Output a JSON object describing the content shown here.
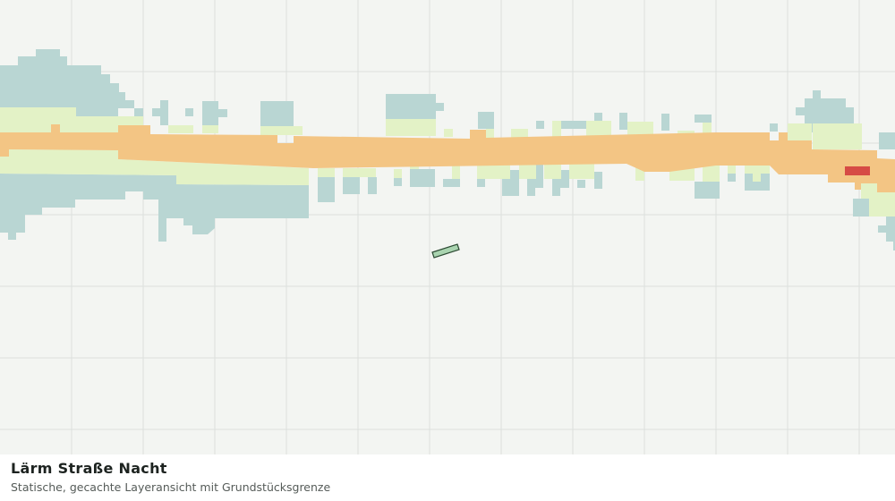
{
  "map": {
    "title": "Lärm Straße Nacht",
    "subtitle": "Statische, gecachte Layeransicht mit Grundstücksgrenze"
  }
}
